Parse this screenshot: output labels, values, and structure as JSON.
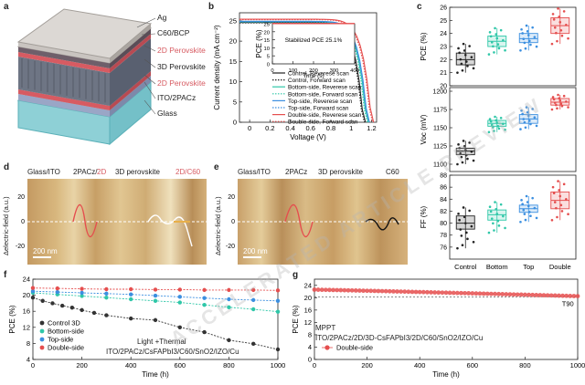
{
  "panels": {
    "a": {
      "letter": "a",
      "layers": [
        "Ag",
        "C60/BCP",
        "2D Perovskite",
        "3D Perovskite",
        "2D Perovskite",
        "ITO/2PACz",
        "Glass"
      ],
      "colors": {
        "ag": "#c9c4c0",
        "c60": "#6e5f6a",
        "pvk2d": "#d75b62",
        "pvk3d": "#6e7584",
        "ito": "#9aa6c6",
        "glass": "#8ed0d6"
      }
    },
    "b": {
      "letter": "b"
    },
    "c": {
      "letter": "c"
    },
    "d": {
      "letter": "d",
      "labels": [
        "Glass/ITO",
        "2PACz/",
        "2D",
        "3D perovskite",
        "2D/C60"
      ],
      "ylabel": "Δelectric-field (a.u.)",
      "scale": "200 nm"
    },
    "e": {
      "letter": "e",
      "labels": [
        "Glass/ITO",
        "2PACz",
        "3D perovskite",
        "C60"
      ],
      "ylabel": "Δelectric-field (a.u.)",
      "scale": "200 nm"
    },
    "f": {
      "letter": "f",
      "note1": "Light +Thermal",
      "note2": "ITO/2PACz/CsFAPbI3/C60/SnO2/IZO/Cu"
    },
    "g": {
      "letter": "g",
      "note1": "MPPT",
      "note2": "ITO/2PACz/2D/3D-CsFAPbI3/2D/C60/SnO2/IZO/Cu",
      "t90": "T90"
    }
  },
  "watermark": "ACCELERATED ARTICLE PREVIEW",
  "chart_data": [
    {
      "id": "b",
      "type": "line",
      "xlabel": "Voltage (V)",
      "ylabel": "Current density (mA cm⁻²)",
      "xlim": [
        -0.1,
        1.25
      ],
      "ylim": [
        0,
        27
      ],
      "xticks": [
        0.0,
        0.2,
        0.4,
        0.6,
        0.8,
        1.0,
        1.2
      ],
      "yticks": [
        0,
        5,
        10,
        15,
        20,
        25
      ],
      "series": [
        {
          "name": "Control, Reverese scan",
          "color": "#222222",
          "dash": "solid",
          "jsc": 24.6,
          "voc": 1.12
        },
        {
          "name": "Control, Forward scan",
          "color": "#222222",
          "dash": "dot",
          "jsc": 24.5,
          "voc": 1.11
        },
        {
          "name": "Bottom-side, Reverese scan",
          "color": "#2fc7a8",
          "dash": "solid",
          "jsc": 24.8,
          "voc": 1.15
        },
        {
          "name": "Bottom-side, Forward scan",
          "color": "#2fc7a8",
          "dash": "dot",
          "jsc": 24.7,
          "voc": 1.14
        },
        {
          "name": "Top-side, Reverese scan",
          "color": "#3b8fe0",
          "dash": "solid",
          "jsc": 24.9,
          "voc": 1.16
        },
        {
          "name": "Top-side, Forward scan",
          "color": "#3b8fe0",
          "dash": "dot",
          "jsc": 24.8,
          "voc": 1.155
        },
        {
          "name": "Double-side, Reverese scan",
          "color": "#e54e4e",
          "dash": "solid",
          "jsc": 25.4,
          "voc": 1.2
        },
        {
          "name": "Double-side, Forward scan",
          "color": "#e54e4e",
          "dash": "dot",
          "jsc": 25.3,
          "voc": 1.19
        }
      ],
      "inset": {
        "xlabel": "Time (s)",
        "ylabel": "PCE (%)",
        "xlim": [
          0,
          400
        ],
        "ylim": [
          0,
          25
        ],
        "xticks": [
          0,
          100,
          200,
          300,
          400
        ],
        "yticks": [
          0,
          5,
          10,
          15,
          20,
          25
        ],
        "text": "Stabilized PCE 25.1%",
        "value": 25.1
      }
    },
    {
      "id": "c",
      "type": "box",
      "categories": [
        "Control",
        "Bottom",
        "Top",
        "Double"
      ],
      "colors": [
        "#222222",
        "#2fc7a8",
        "#3b8fe0",
        "#e54e4e"
      ],
      "subplots": [
        {
          "ylabel": "PCE (%)",
          "ylim": [
            20,
            26
          ],
          "yticks": [
            20,
            21,
            22,
            23,
            24,
            25,
            26
          ],
          "boxes": [
            [
              21.0,
              21.6,
              22.0,
              22.5,
              23.2
            ],
            [
              22.4,
              23.0,
              23.4,
              23.8,
              24.4
            ],
            [
              22.7,
              23.3,
              23.6,
              24.0,
              24.6
            ],
            [
              23.2,
              24.0,
              24.6,
              25.2,
              25.9
            ]
          ]
        },
        {
          "ylabel": "Voc (mV)",
          "ylim": [
            1090,
            1205
          ],
          "yticks": [
            1100,
            1125,
            1150,
            1175,
            1200
          ],
          "boxes": [
            [
              1100,
              1113,
              1118,
              1122,
              1132
            ],
            [
              1144,
              1152,
              1156,
              1160,
              1165
            ],
            [
              1148,
              1156,
              1162,
              1168,
              1178
            ],
            [
              1175,
              1181,
              1185,
              1190,
              1195
            ]
          ]
        },
        {
          "ylabel": "FF (%)",
          "ylim": [
            74,
            88
          ],
          "yticks": [
            76,
            78,
            80,
            82,
            84,
            86,
            88
          ],
          "boxes": [
            [
              75.8,
              79.0,
              80.0,
              81.2,
              82.6
            ],
            [
              78.4,
              80.5,
              81.4,
              82.2,
              83.5
            ],
            [
              80.2,
              81.8,
              82.4,
              83.0,
              84.5
            ],
            [
              80.5,
              82.4,
              83.8,
              85.2,
              87.0
            ]
          ]
        }
      ]
    },
    {
      "id": "f",
      "type": "line",
      "xlabel": "Time (h)",
      "ylabel": "PCE (%)",
      "xlim": [
        0,
        1000
      ],
      "ylim": [
        4,
        24
      ],
      "xticks": [
        0,
        200,
        400,
        600,
        800,
        1000
      ],
      "yticks": [
        4,
        8,
        12,
        16,
        20,
        24
      ],
      "series": [
        {
          "name": "Control 3D",
          "color": "#333333",
          "x": [
            0,
            40,
            80,
            120,
            160,
            200,
            250,
            300,
            400,
            500,
            600,
            700,
            800,
            900,
            1000
          ],
          "y": [
            19.4,
            18.6,
            18.0,
            17.4,
            16.9,
            16.3,
            15.6,
            15.0,
            14.2,
            13.8,
            12.0,
            10.8,
            8.8,
            7.9,
            6.5
          ]
        },
        {
          "name": "Bottom-side",
          "color": "#2fc7a8",
          "x": [
            0,
            100,
            200,
            300,
            400,
            500,
            600,
            700,
            800,
            900,
            1000
          ],
          "y": [
            20.6,
            20.2,
            19.8,
            19.4,
            19.0,
            18.6,
            18.2,
            17.6,
            17.0,
            16.5,
            15.9
          ]
        },
        {
          "name": "Top-side",
          "color": "#3b8fe0",
          "x": [
            0,
            100,
            200,
            300,
            400,
            500,
            600,
            700,
            800,
            900,
            1000
          ],
          "y": [
            21.0,
            20.8,
            20.6,
            20.4,
            20.2,
            19.9,
            19.6,
            19.3,
            19.0,
            18.8,
            18.6
          ]
        },
        {
          "name": "Double-side",
          "color": "#e54e4e",
          "x": [
            0,
            100,
            200,
            300,
            400,
            500,
            600,
            700,
            800,
            900,
            1000
          ],
          "y": [
            21.8,
            21.7,
            21.6,
            21.5,
            21.5,
            21.4,
            21.4,
            21.3,
            21.3,
            21.3,
            21.2
          ]
        }
      ]
    },
    {
      "id": "g",
      "type": "line",
      "xlabel": "Time (h)",
      "ylabel": "PCE (%)",
      "xlim": [
        0,
        1000
      ],
      "ylim": [
        0,
        26
      ],
      "xticks": [
        0,
        200,
        400,
        600,
        800,
        1000
      ],
      "yticks": [
        0,
        4,
        8,
        12,
        16,
        20,
        24
      ],
      "t90_level": 20.3,
      "series": [
        {
          "name": "Double-side",
          "color": "#e54e4e",
          "x_start": 0,
          "x_end": 1000,
          "y_start": 22.6,
          "y_end": 20.5
        }
      ]
    }
  ]
}
